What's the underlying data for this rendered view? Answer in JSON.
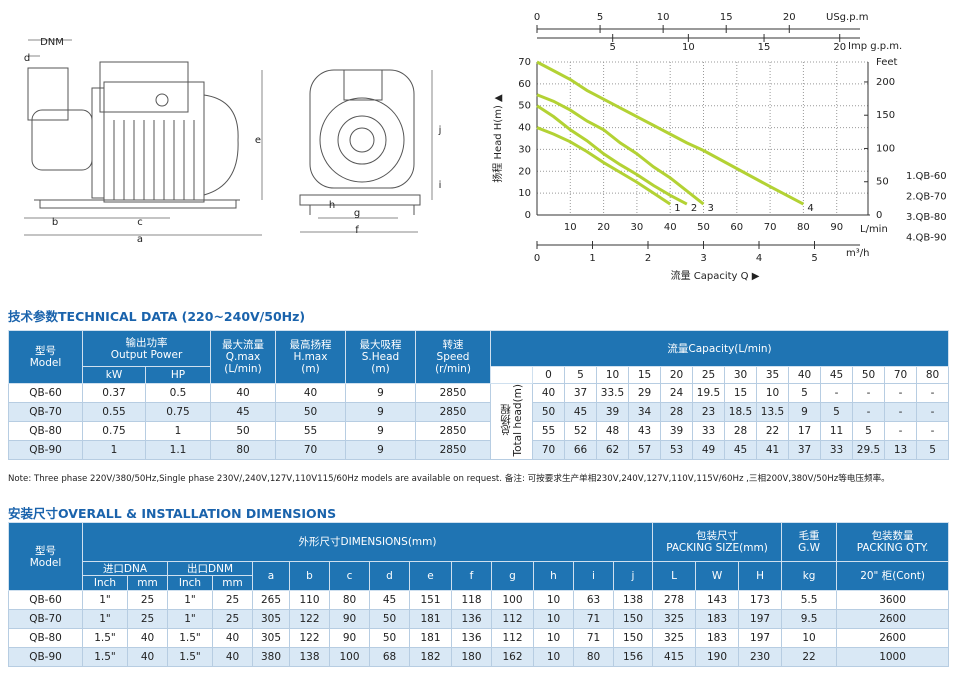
{
  "drawing": {
    "labels": [
      "DNM",
      "d",
      "e",
      "b",
      "c",
      "a",
      "h",
      "g",
      "f",
      "i",
      "j"
    ]
  },
  "chart_data": {
    "type": "line",
    "y_label": "扬程 Head H(m) ▲",
    "x_label": "流量 Capacity Q ▶",
    "x_unit": "L/min",
    "xlim": [
      0,
      100
    ],
    "xticks": [
      10,
      20,
      30,
      40,
      50,
      60,
      70,
      80,
      90
    ],
    "ylim": [
      0,
      70
    ],
    "yticks": [
      0,
      10,
      20,
      30,
      40,
      50,
      60,
      70
    ],
    "y2_label": "Feet",
    "y2lim": [
      0,
      230
    ],
    "y2ticks": [
      0,
      50,
      100,
      150,
      200
    ],
    "us_gpm": {
      "label": "USg.p.m",
      "lim": [
        0,
        26.4
      ],
      "ticks": [
        0,
        5,
        10,
        15,
        20
      ]
    },
    "imp_gpm": {
      "label": "Imp g.p.m.",
      "lim": [
        0,
        22
      ],
      "ticks": [
        5,
        10,
        15,
        20
      ]
    },
    "m3h": {
      "label": "m³/h",
      "lim": [
        0,
        6
      ],
      "ticks": [
        0,
        1,
        2,
        3,
        4,
        5
      ]
    },
    "grid": true,
    "series": [
      {
        "name": "1.QB-60",
        "label": "1",
        "color": "#b3d234",
        "x": [
          0,
          5,
          10,
          15,
          20,
          25,
          30,
          35,
          40
        ],
        "values": [
          40,
          37,
          33.5,
          29,
          24,
          19.5,
          15,
          10,
          5
        ]
      },
      {
        "name": "2.QB-70",
        "label": "2",
        "color": "#b3d234",
        "x": [
          0,
          5,
          10,
          15,
          20,
          25,
          30,
          35,
          40,
          45
        ],
        "values": [
          50,
          45,
          39,
          34,
          28,
          23,
          18.5,
          13.5,
          9,
          5
        ]
      },
      {
        "name": "3.QB-80",
        "label": "3",
        "color": "#b3d234",
        "x": [
          0,
          5,
          10,
          15,
          20,
          25,
          30,
          35,
          40,
          45,
          50
        ],
        "values": [
          55,
          52,
          48,
          43,
          39,
          33,
          28,
          22,
          17,
          11,
          5
        ]
      },
      {
        "name": "4.QB-90",
        "label": "4",
        "color": "#b3d234",
        "x": [
          0,
          5,
          10,
          15,
          20,
          25,
          30,
          35,
          40,
          45,
          50,
          70,
          80
        ],
        "values": [
          70,
          66,
          62,
          57,
          53,
          49,
          45,
          41,
          37,
          33,
          29.5,
          13,
          5
        ]
      }
    ]
  },
  "technical_data": {
    "title": "技术参数TECHNICAL DATA (220~240V/50Hz)",
    "header": {
      "model": "型号\nModel",
      "output_power": "输出功率\nOutput Power",
      "kw": "kW",
      "hp": "HP",
      "qmax": "最大流量\nQ.max\n(L/min)",
      "hmax": "最高扬程\nH.max\n(m)",
      "shead": "最大吸程\nS.Head\n(m)",
      "speed": "转速\nSpeed\n(r/min)",
      "capacity": "流量Capacity(L/min)",
      "head": "总扬程\nTotal head(m)"
    },
    "capacities": [
      0,
      5,
      10,
      15,
      20,
      25,
      30,
      35,
      40,
      45,
      50,
      70,
      80
    ],
    "rows": [
      [
        "QB-60",
        0.37,
        0.5,
        40,
        40,
        9,
        2850,
        40,
        37,
        33.5,
        29,
        24,
        19.5,
        15,
        10,
        5,
        "-",
        "-",
        "-",
        "-"
      ],
      [
        "QB-70",
        0.55,
        0.75,
        45,
        50,
        9,
        2850,
        50,
        45,
        39,
        34,
        28,
        23,
        18.5,
        13.5,
        9,
        5,
        "-",
        "-",
        "-"
      ],
      [
        "QB-80",
        0.75,
        1,
        50,
        55,
        9,
        2850,
        55,
        52,
        48,
        43,
        39,
        33,
        28,
        22,
        17,
        11,
        5,
        "-",
        "-"
      ],
      [
        "QB-90",
        1,
        1.1,
        80,
        70,
        9,
        2850,
        70,
        66,
        62,
        57,
        53,
        49,
        45,
        41,
        37,
        33,
        29.5,
        13,
        5
      ]
    ]
  },
  "note": "Note: Three phase 220V/380/50Hz,Single phase 230V/,240V,127V,110V115/60Hz models are available on request. 备注: 可按要求生产单相230V,240V,127V,110V,115V/60Hz ,三相200V,380V/50Hz等电压频率。",
  "dimensions": {
    "title": "安装尺寸OVERALL & INSTALLATION DIMENSIONS",
    "header": {
      "model": "型号\nModel",
      "dimensions": "外形尺寸DIMENSIONS(mm)",
      "packing": "包装尺寸\nPACKING SIZE(mm)",
      "gw": "毛重\nG.W",
      "qty": "包装数量\nPACKING QTY.",
      "dna": "进口DNA",
      "dnm": "出口DNM",
      "letters": [
        "a",
        "b",
        "c",
        "d",
        "e",
        "f",
        "g",
        "h",
        "i",
        "j"
      ],
      "lwh": [
        "L",
        "W",
        "H"
      ],
      "kg": "kg",
      "cont": "20\" 柜(Cont)",
      "units": [
        "Inch",
        "mm",
        "Inch",
        "mm"
      ]
    },
    "rows": [
      [
        "QB-60",
        "1\"",
        25,
        "1\"",
        25,
        265,
        110,
        80,
        45,
        151,
        118,
        100,
        10,
        63,
        138,
        278,
        143,
        173,
        5.5,
        3600
      ],
      [
        "QB-70",
        "1\"",
        25,
        "1\"",
        25,
        305,
        122,
        90,
        50,
        181,
        136,
        112,
        10,
        71,
        150,
        325,
        183,
        197,
        9.5,
        2600
      ],
      [
        "QB-80",
        "1.5\"",
        40,
        "1.5\"",
        40,
        305,
        122,
        90,
        50,
        181,
        136,
        112,
        10,
        71,
        150,
        325,
        183,
        197,
        10,
        2600
      ],
      [
        "QB-90",
        "1.5\"",
        40,
        "1.5\"",
        40,
        380,
        138,
        100,
        68,
        182,
        180,
        162,
        10,
        80,
        156,
        415,
        190,
        230,
        22,
        1000
      ]
    ]
  }
}
